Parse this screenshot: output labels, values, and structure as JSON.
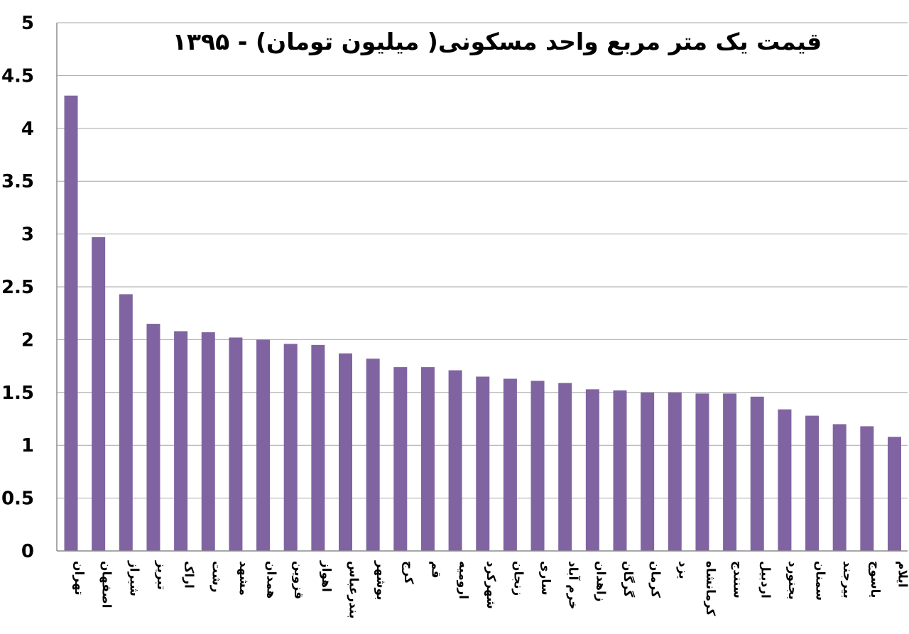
{
  "chart_data": {
    "type": "bar",
    "title": "قیمت یک متر مربع واحد مسکونی( میلیون تومان) - ۱۳۹۵",
    "xlabel": "",
    "ylabel": "",
    "ylim": [
      0,
      5
    ],
    "yticks": [
      "0",
      "0.5",
      "1",
      "1.5",
      "2",
      "2.5",
      "3",
      "3.5",
      "4",
      "4.5",
      "5"
    ],
    "grid": true,
    "bar_color": "#8064a2",
    "categories": [
      "تهران",
      "اصفهان",
      "شیراز",
      "تبریز",
      "اراک",
      "رشت",
      "مشهد",
      "همدان",
      "قزوین",
      "اهواز",
      "بندرعباس",
      "بوشهر",
      "کرج",
      "قم",
      "ارومیه",
      "شهرکرد",
      "زنجان",
      "ساری",
      "خرم آباد",
      "زاهدان",
      "گرگان",
      "کرمان",
      "یزد",
      "کرمانشاه",
      "سنندج",
      "اردبیل",
      "بجنورد",
      "سمنان",
      "بیرجند",
      "یاسوج",
      "ایلام"
    ],
    "values": [
      4.31,
      2.97,
      2.43,
      2.15,
      2.08,
      2.07,
      2.02,
      2.0,
      1.96,
      1.95,
      1.87,
      1.82,
      1.74,
      1.74,
      1.71,
      1.65,
      1.63,
      1.61,
      1.59,
      1.53,
      1.52,
      1.5,
      1.5,
      1.49,
      1.49,
      1.46,
      1.34,
      1.28,
      1.2,
      1.18,
      1.08
    ]
  }
}
